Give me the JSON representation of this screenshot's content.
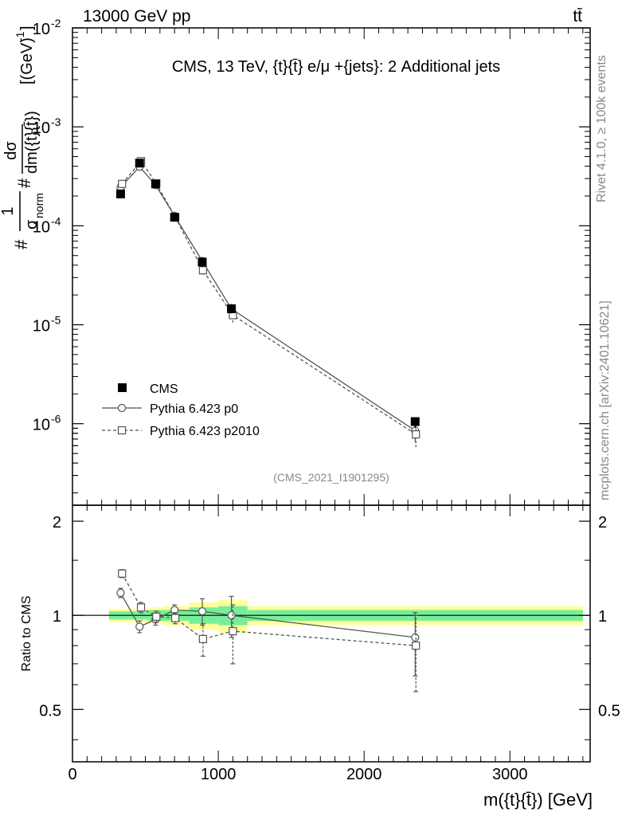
{
  "header": {
    "energy_label": "13000 GeV pp",
    "process_label": "tt̄"
  },
  "side_labels": {
    "rivet": "Rivet 4.1.0, ≥ 100k events",
    "mcplots": "mcplots.cern.ch [arXiv:2401.10621]"
  },
  "chart_data": {
    "type": "line",
    "title": "CMS, 13 TeV, {t}{t̄} e/μ +{jets}: 2 Additional jets",
    "analysis_id": "(CMS_2021_I1901295)",
    "xlabel": "m({t}{t̄}) [GeV]",
    "ylabel": "#1/σnorm #dσ/dm({t}{t̄}) [(GeV)^-1]",
    "ylabel_parts": {
      "hash1": "#",
      "one": "1",
      "sigma": "σ",
      "norm": "norm",
      "hash2": "#",
      "dsigma": "dσ",
      "dm": "dm({t}{t̄})",
      "unit": "[(GeV)",
      "exp": "-1",
      "close": "]"
    },
    "ratio_ylabel": "Ratio to CMS",
    "xlim": [
      0,
      3550
    ],
    "ylim": [
      1.5e-07,
      0.01
    ],
    "ratio_ylim": [
      0.34,
      2.25
    ],
    "x_ticks": [
      {
        "value": 0,
        "label": "0"
      },
      {
        "value": 1000,
        "label": "1000"
      },
      {
        "value": 2000,
        "label": "2000"
      },
      {
        "value": 3000,
        "label": "3000"
      }
    ],
    "y_ticks": [
      {
        "exp": -2,
        "base": "10",
        "sup": "-2"
      },
      {
        "exp": -3,
        "base": "10",
        "sup": "-3"
      },
      {
        "exp": -4,
        "base": "10",
        "sup": "-4"
      },
      {
        "exp": -5,
        "base": "10",
        "sup": "-5"
      },
      {
        "exp": -6,
        "base": "10",
        "sup": "-6"
      }
    ],
    "ratio_ticks": [
      {
        "value": 2,
        "label": "2"
      },
      {
        "value": 1,
        "label": "1"
      },
      {
        "value": 0.5,
        "label": "0.5"
      }
    ],
    "bins": [
      {
        "lo": 250,
        "hi": 400
      },
      {
        "lo": 400,
        "hi": 520
      },
      {
        "lo": 520,
        "hi": 620
      },
      {
        "lo": 620,
        "hi": 800
      },
      {
        "lo": 800,
        "hi": 1000
      },
      {
        "lo": 1000,
        "hi": 1200
      },
      {
        "lo": 1200,
        "hi": 3500
      }
    ],
    "series": [
      {
        "name": "CMS",
        "style": "data",
        "x": [
          330,
          460,
          570,
          700,
          890,
          1090,
          2350
        ],
        "values": [
          0.00021,
          0.00043,
          0.000265,
          0.000122,
          4.3e-05,
          1.45e-05,
          1.05e-06
        ],
        "err_lo": [
          0.000195,
          0.000405,
          0.00025,
          0.000114,
          3.85e-05,
          1.3e-05,
          9e-07
        ],
        "err_hi": [
          0.000225,
          0.000455,
          0.00028,
          0.00013,
          4.8e-05,
          1.62e-05,
          1.15e-06
        ],
        "band_inner": [
          0.03,
          0.03,
          0.04,
          0.04,
          0.06,
          0.07,
          0.04
        ],
        "band_outer": [
          0.05,
          0.05,
          0.06,
          0.07,
          0.1,
          0.12,
          0.07
        ]
      },
      {
        "name": "Pythia 6.423 p0",
        "style": "solid-circle",
        "x": [
          330,
          460,
          570,
          700,
          890,
          1090,
          2350
        ],
        "values": [
          0.000245,
          0.000395,
          0.000258,
          0.000126,
          4.4e-05,
          1.45e-05,
          8.5e-07
        ],
        "err_lo": [
          0.000235,
          0.00038,
          0.000248,
          0.00012,
          4.1e-05,
          1.3e-05,
          6.5e-07
        ],
        "err_hi": [
          0.000255,
          0.00041,
          0.000268,
          0.000132,
          4.7e-05,
          1.6e-05,
          1.05e-06
        ],
        "ratio": [
          1.18,
          0.92,
          0.97,
          1.04,
          1.03,
          1.0,
          0.85
        ],
        "ratio_lo": [
          1.14,
          0.88,
          0.93,
          1.0,
          0.93,
          0.85,
          0.64
        ],
        "ratio_hi": [
          1.22,
          0.96,
          1.01,
          1.08,
          1.13,
          1.15,
          1.02
        ]
      },
      {
        "name": "Pythia 6.423 p2010",
        "style": "dashed-square",
        "x": [
          340,
          470,
          575,
          705,
          895,
          1100,
          2355
        ],
        "values": [
          0.000265,
          0.00045,
          0.000268,
          0.000122,
          3.55e-05,
          1.25e-05,
          7.8e-07
        ],
        "err_lo": [
          0.000255,
          0.00043,
          0.000255,
          0.000115,
          3.2e-05,
          1.05e-05,
          5.8e-07
        ],
        "err_hi": [
          0.000275,
          0.00047,
          0.00028,
          0.000129,
          3.9e-05,
          1.45e-05,
          9.5e-07
        ],
        "ratio": [
          1.36,
          1.06,
          0.99,
          0.98,
          0.84,
          0.89,
          0.8
        ],
        "ratio_lo": [
          1.32,
          1.02,
          0.95,
          0.94,
          0.74,
          0.7,
          0.57
        ],
        "ratio_hi": [
          1.4,
          1.1,
          1.03,
          1.02,
          0.94,
          1.08,
          1.0
        ]
      }
    ],
    "legend": [
      {
        "label": "CMS"
      },
      {
        "label": "Pythia 6.423 p0"
      },
      {
        "label": "Pythia 6.423 p2010"
      }
    ],
    "legend_position": "lower-left",
    "colors": {
      "band_inner": "#77ee99",
      "band_outer": "#ffff99",
      "mc_line": "#555555",
      "data": "#000000",
      "watermark": "#888888"
    }
  }
}
